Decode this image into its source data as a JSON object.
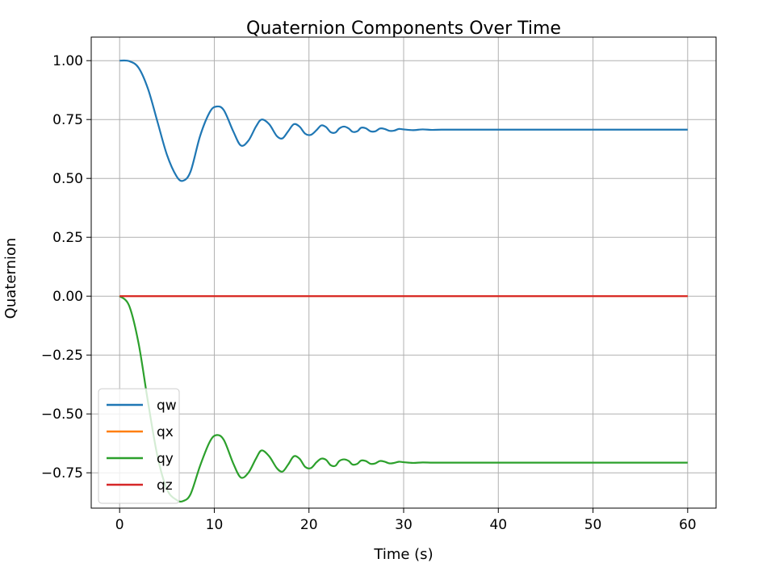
{
  "chart_data": {
    "type": "line",
    "title": "Quaternion Components Over Time",
    "xlabel": "Time (s)",
    "ylabel": "Quaternion",
    "xlim": [
      -3,
      63
    ],
    "ylim": [
      -0.9,
      1.1
    ],
    "x_ticks": [
      0,
      10,
      20,
      30,
      40,
      50,
      60
    ],
    "x_tick_labels": [
      "0",
      "10",
      "20",
      "30",
      "40",
      "50",
      "60"
    ],
    "y_ticks": [
      1.0,
      0.75,
      0.5,
      0.25,
      0.0,
      -0.25,
      -0.5,
      -0.75
    ],
    "y_tick_labels": [
      "1.00",
      "0.75",
      "0.50",
      "0.25",
      "0.00",
      "−0.25",
      "−0.50",
      "−0.75"
    ],
    "grid": true,
    "legend_position": "lower-left",
    "series": [
      {
        "name": "qw",
        "color": "#1f77b4",
        "x": [
          0,
          1,
          2,
          3,
          4,
          5,
          6,
          6.7,
          7.5,
          8.5,
          9.5,
          10.2,
          11,
          12,
          12.8,
          13.6,
          14.4,
          15,
          15.8,
          16.6,
          17.2,
          17.8,
          18.4,
          19,
          19.6,
          20.2,
          20.8,
          21.3,
          21.8,
          22.3,
          22.8,
          23.2,
          23.7,
          24.2,
          24.6,
          25.1,
          25.5,
          26,
          26.5,
          27,
          27.5,
          28,
          28.5,
          29,
          29.5,
          30,
          31,
          32,
          33,
          34,
          35,
          36,
          40,
          45,
          50,
          55,
          60
        ],
        "values": [
          1.0,
          0.998,
          0.97,
          0.88,
          0.74,
          0.6,
          0.51,
          0.49,
          0.53,
          0.68,
          0.78,
          0.805,
          0.79,
          0.7,
          0.64,
          0.66,
          0.72,
          0.75,
          0.73,
          0.68,
          0.67,
          0.7,
          0.73,
          0.72,
          0.69,
          0.685,
          0.705,
          0.725,
          0.718,
          0.696,
          0.695,
          0.712,
          0.72,
          0.712,
          0.698,
          0.7,
          0.715,
          0.713,
          0.7,
          0.7,
          0.712,
          0.71,
          0.702,
          0.703,
          0.71,
          0.708,
          0.705,
          0.708,
          0.706,
          0.707,
          0.707,
          0.707,
          0.707,
          0.707,
          0.707,
          0.707,
          0.707
        ]
      },
      {
        "name": "qx",
        "color": "#ff7f0e",
        "x": [
          0,
          60
        ],
        "values": [
          0,
          0
        ]
      },
      {
        "name": "qy",
        "color": "#2ca02c",
        "x": [
          0,
          1,
          2,
          3,
          4,
          5,
          6,
          6.7,
          7.5,
          8.5,
          9.5,
          10.2,
          11,
          12,
          12.8,
          13.6,
          14.4,
          15,
          15.8,
          16.6,
          17.2,
          17.8,
          18.4,
          19,
          19.6,
          20.2,
          20.8,
          21.3,
          21.8,
          22.3,
          22.8,
          23.2,
          23.7,
          24.2,
          24.6,
          25.1,
          25.5,
          26,
          26.5,
          27,
          27.5,
          28,
          28.5,
          29,
          29.5,
          30,
          31,
          32,
          33,
          34,
          35,
          36,
          40,
          45,
          50,
          55,
          60
        ],
        "values": [
          0.0,
          -0.04,
          -0.2,
          -0.45,
          -0.68,
          -0.82,
          -0.865,
          -0.87,
          -0.84,
          -0.72,
          -0.62,
          -0.59,
          -0.61,
          -0.71,
          -0.77,
          -0.75,
          -0.69,
          -0.655,
          -0.68,
          -0.73,
          -0.745,
          -0.715,
          -0.68,
          -0.69,
          -0.725,
          -0.73,
          -0.705,
          -0.69,
          -0.695,
          -0.718,
          -0.72,
          -0.7,
          -0.693,
          -0.7,
          -0.715,
          -0.712,
          -0.698,
          -0.7,
          -0.712,
          -0.71,
          -0.7,
          -0.703,
          -0.71,
          -0.708,
          -0.703,
          -0.705,
          -0.708,
          -0.706,
          -0.707,
          -0.707,
          -0.707,
          -0.707,
          -0.707,
          -0.707,
          -0.707,
          -0.707,
          -0.707
        ]
      },
      {
        "name": "qz",
        "color": "#d62728",
        "x": [
          0,
          60
        ],
        "values": [
          0,
          0
        ]
      }
    ]
  }
}
